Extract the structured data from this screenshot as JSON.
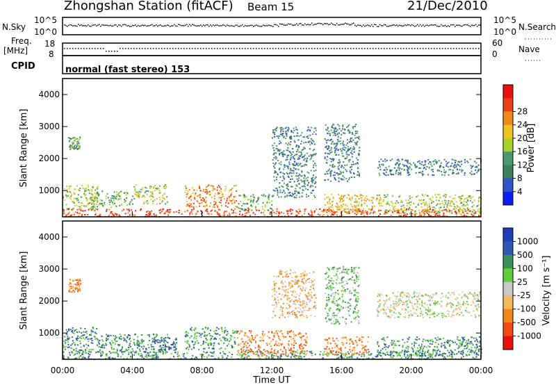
{
  "header": {
    "station": "Zhongshan Station (fitACF)",
    "beam": "Beam 15",
    "date": "21/Dec/2010"
  },
  "top_panels": {
    "nsky_label": "N.Sky",
    "nsky_ticks": [
      "10^5",
      "10^0"
    ],
    "nsearch_label": "N.Search",
    "nsearch_ticks": [
      "10^5",
      "10^0"
    ],
    "freq_label_1": "Freq.",
    "freq_label_2": "[MHz]",
    "freq_ticks": [
      "18",
      "8"
    ],
    "nave_label": "Nave",
    "nave_ticks": [
      "60",
      "0"
    ],
    "cpid_label": "CPID",
    "cpid_text": "normal (fast stereo) 153"
  },
  "time_axis": {
    "ticks": [
      "00:00",
      "04:00",
      "08:00",
      "12:00",
      "16:00",
      "20:00",
      "00:00"
    ],
    "xlabel": "Time UT"
  },
  "colors": {
    "power_scale": [
      "#0a1ff0",
      "#2f56c8",
      "#3f7f5a",
      "#4b9a6e",
      "#a8d22c",
      "#f0c21e",
      "#f08a1a",
      "#e8401a",
      "#e80f0f"
    ],
    "velocity_scale": [
      "#e80f0f",
      "#f04a14",
      "#f08a1a",
      "#f5b85a",
      "#c8c8c8",
      "#5fcc3a",
      "#3f8f5a",
      "#2f58b0",
      "#1f3fb8"
    ]
  },
  "chart_data": [
    {
      "type": "heatmap",
      "title": "",
      "xlabel": "",
      "ylabel": "Slant Range [km]",
      "x_range_hours": [
        0,
        24
      ],
      "ylim": [
        180,
        4500
      ],
      "yticks": [
        1000,
        2000,
        3000,
        4000
      ],
      "colorbar": {
        "label": "Power [dB]",
        "ticks": [
          "4",
          "8",
          "12",
          "16",
          "20",
          "24",
          "28"
        ],
        "range": [
          0,
          32
        ]
      },
      "scatter_regions": [
        {
          "t_start": 0.0,
          "t_end": 24.0,
          "r_min": 200,
          "r_max": 450,
          "level": 7
        },
        {
          "t_start": 0.0,
          "t_end": 2.0,
          "r_min": 400,
          "r_max": 1200,
          "level": 4
        },
        {
          "t_start": 0.3,
          "t_end": 1.0,
          "r_min": 2300,
          "r_max": 2700,
          "level": 3
        },
        {
          "t_start": 1.5,
          "t_end": 4.0,
          "r_min": 500,
          "r_max": 1000,
          "level": 3
        },
        {
          "t_start": 4.0,
          "t_end": 6.0,
          "r_min": 600,
          "r_max": 1200,
          "level": 4
        },
        {
          "t_start": 7.0,
          "t_end": 10.0,
          "r_min": 500,
          "r_max": 1200,
          "level": 6
        },
        {
          "t_start": 10.0,
          "t_end": 12.0,
          "r_min": 400,
          "r_max": 900,
          "level": 3
        },
        {
          "t_start": 12.0,
          "t_end": 14.5,
          "r_min": 800,
          "r_max": 3000,
          "level": 2
        },
        {
          "t_start": 15.0,
          "t_end": 17.0,
          "r_min": 1300,
          "r_max": 3100,
          "level": 2
        },
        {
          "t_start": 15.0,
          "t_end": 18.0,
          "r_min": 300,
          "r_max": 900,
          "level": 5
        },
        {
          "t_start": 18.0,
          "t_end": 24.0,
          "r_min": 1500,
          "r_max": 2000,
          "level": 2
        },
        {
          "t_start": 18.0,
          "t_end": 24.0,
          "r_min": 300,
          "r_max": 900,
          "level": 4
        }
      ]
    },
    {
      "type": "heatmap",
      "title": "",
      "xlabel": "Time UT",
      "ylabel": "Slant Range [km]",
      "x_range_hours": [
        0,
        24
      ],
      "ylim": [
        180,
        4500
      ],
      "yticks": [
        1000,
        2000,
        3000,
        4000
      ],
      "colorbar": {
        "label": "Velocity [m s⁻¹]",
        "ticks": [
          "1000",
          "500",
          "100",
          "25",
          "-25",
          "-100",
          "-500",
          "-1000"
        ]
      },
      "scatter_regions": [
        {
          "t_start": 0.0,
          "t_end": 24.0,
          "r_min": 200,
          "r_max": 450,
          "level": 6
        },
        {
          "t_start": 0.0,
          "t_end": 2.0,
          "r_min": 400,
          "r_max": 1200,
          "level": 6
        },
        {
          "t_start": 0.3,
          "t_end": 1.0,
          "r_min": 2300,
          "r_max": 2700,
          "level": 2
        },
        {
          "t_start": 2.0,
          "t_end": 6.0,
          "r_min": 400,
          "r_max": 1000,
          "level": 6
        },
        {
          "t_start": 5.5,
          "t_end": 6.5,
          "r_min": 400,
          "r_max": 900,
          "level": 7
        },
        {
          "t_start": 7.0,
          "t_end": 10.0,
          "r_min": 500,
          "r_max": 1200,
          "level": 6
        },
        {
          "t_start": 10.0,
          "t_end": 14.0,
          "r_min": 300,
          "r_max": 1100,
          "level": 2
        },
        {
          "t_start": 12.0,
          "t_end": 14.5,
          "r_min": 1500,
          "r_max": 3000,
          "level": 3
        },
        {
          "t_start": 15.0,
          "t_end": 17.0,
          "r_min": 1300,
          "r_max": 3100,
          "level": 5
        },
        {
          "t_start": 15.0,
          "t_end": 17.5,
          "r_min": 300,
          "r_max": 900,
          "level": 2
        },
        {
          "t_start": 18.0,
          "t_end": 24.0,
          "r_min": 1500,
          "r_max": 2300,
          "level": 4
        },
        {
          "t_start": 18.0,
          "t_end": 24.0,
          "r_min": 300,
          "r_max": 900,
          "level": 6
        }
      ]
    }
  ]
}
